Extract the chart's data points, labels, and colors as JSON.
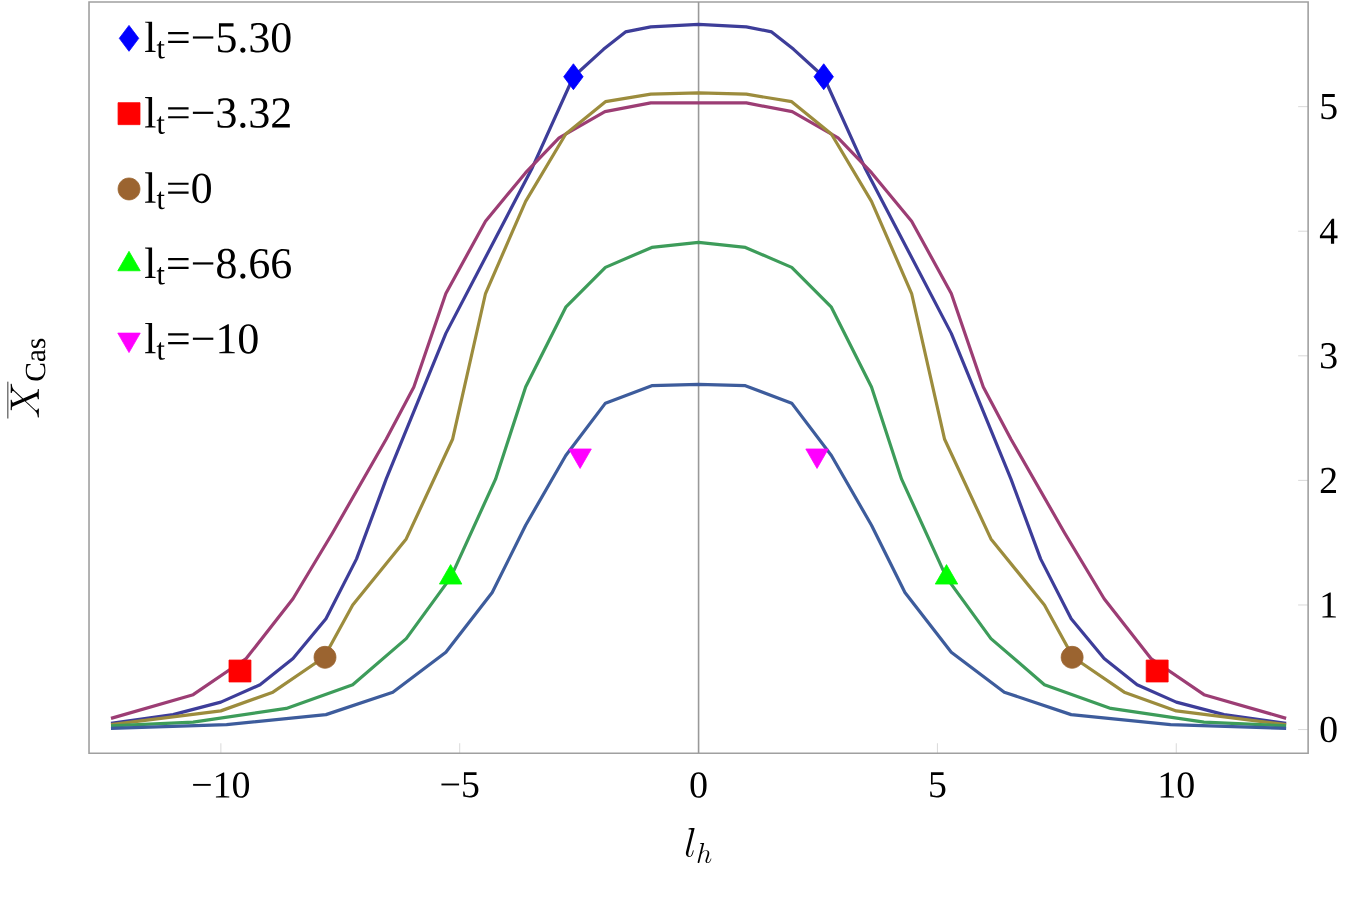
{
  "chart_data": {
    "type": "line",
    "xlabel": "l_h",
    "ylabel": "\\overline{X}_{\\mathrm{Cas}}",
    "xlim": [
      -12.76,
      12.76
    ],
    "ylim": [
      -0.19,
      5.84
    ],
    "xticks": [
      {
        "value": -10,
        "label": "−10"
      },
      {
        "value": -5,
        "label": "−5"
      },
      0,
      5,
      10
    ],
    "yticks": [
      0,
      1,
      2,
      3,
      4,
      5
    ],
    "grid": false,
    "legend": "top left",
    "line_style": "solid",
    "ref_lines": [
      {
        "axis": "x",
        "value": 0,
        "color": "#999999"
      }
    ],
    "series": [
      {
        "color": "#3d3d99",
        "x": [
          -12.3,
          -11.0,
          -10.0,
          -9.18,
          -8.49,
          -7.8,
          -7.16,
          -6.54,
          -5.29,
          -3.48,
          -2.62,
          -1.99,
          -1.53,
          -1,
          0,
          1,
          1.53,
          1.99,
          2.62,
          3.48,
          5.29,
          6.54,
          7.16,
          7.8,
          8.49,
          9.18,
          10.0,
          11.0,
          12.3
        ],
        "values": [
          0.05,
          0.12,
          0.22,
          0.36,
          0.57,
          0.89,
          1.37,
          2.01,
          3.18,
          4.51,
          5.24,
          5.46,
          5.6,
          5.64,
          5.66,
          5.64,
          5.6,
          5.46,
          5.24,
          4.51,
          3.18,
          2.01,
          1.37,
          0.89,
          0.57,
          0.36,
          0.22,
          0.12,
          0.05
        ]
      },
      {
        "color": "#9c3d74",
        "x": [
          -12.3,
          -10.58,
          -9.47,
          -8.49,
          -7.66,
          -6.54,
          -5.96,
          -5.29,
          -4.46,
          -3.62,
          -2.92,
          -1.96,
          -1,
          0,
          1,
          1.96,
          2.92,
          3.62,
          4.46,
          5.29,
          5.96,
          6.54,
          7.66,
          8.49,
          9.47,
          10.58,
          12.3
        ],
        "values": [
          0.09,
          0.28,
          0.57,
          1.05,
          1.58,
          2.33,
          2.75,
          3.5,
          4.08,
          4.47,
          4.75,
          4.96,
          5.03,
          5.03,
          5.03,
          4.96,
          4.75,
          4.47,
          4.08,
          3.5,
          2.75,
          2.33,
          1.58,
          1.05,
          0.57,
          0.28,
          0.09
        ]
      },
      {
        "color": "#9c8c3d",
        "x": [
          -12.3,
          -10.0,
          -8.91,
          -7.84,
          -7.24,
          -6.12,
          -5.15,
          -4.46,
          -3.62,
          -2.78,
          -1.95,
          -1,
          0,
          1,
          1.95,
          2.78,
          3.62,
          4.46,
          5.15,
          6.12,
          7.24,
          7.84,
          8.91,
          10.0,
          12.3
        ],
        "values": [
          0.04,
          0.15,
          0.3,
          0.58,
          1.0,
          1.53,
          2.33,
          3.5,
          4.24,
          4.78,
          5.04,
          5.1,
          5.11,
          5.1,
          5.04,
          4.78,
          4.24,
          3.5,
          2.33,
          1.53,
          1.0,
          0.58,
          0.3,
          0.15,
          0.04
        ]
      },
      {
        "color": "#3d9c5a",
        "x": [
          -12.3,
          -10.58,
          -8.63,
          -7.24,
          -6.12,
          -5.19,
          -4.25,
          -3.62,
          -2.78,
          -1.95,
          -0.98,
          0,
          0.98,
          1.95,
          2.78,
          3.62,
          4.25,
          5.19,
          6.12,
          7.24,
          8.63,
          10.58,
          12.3
        ],
        "values": [
          0.03,
          0.06,
          0.17,
          0.36,
          0.73,
          1.22,
          2.01,
          2.75,
          3.39,
          3.71,
          3.87,
          3.91,
          3.87,
          3.71,
          3.39,
          2.75,
          2.01,
          1.22,
          0.73,
          0.36,
          0.17,
          0.06,
          0.03
        ]
      },
      {
        "color": "#3d5c9c",
        "x": [
          -12.3,
          -9.88,
          -7.8,
          -6.4,
          -5.29,
          -4.32,
          -3.62,
          -2.78,
          -1.95,
          -0.98,
          0,
          0.98,
          1.95,
          2.78,
          3.62,
          4.32,
          5.29,
          6.4,
          7.8,
          9.88,
          12.3
        ],
        "values": [
          0.01,
          0.04,
          0.12,
          0.3,
          0.62,
          1.1,
          1.64,
          2.2,
          2.62,
          2.76,
          2.77,
          2.76,
          2.62,
          2.2,
          1.64,
          1.1,
          0.62,
          0.3,
          0.12,
          0.04,
          0.01
        ]
      },
      {
        "type": "scatter",
        "name": "l$_{t}$=−5.30",
        "color": "#0000ff",
        "marker": "diamond",
        "x": [
          -2.62,
          2.62
        ],
        "values": [
          5.24,
          5.24
        ]
      },
      {
        "type": "scatter",
        "name": "l$_{t}$=−3.32",
        "color": "#ff0000",
        "marker": "square",
        "x": [
          -9.6,
          9.6
        ],
        "values": [
          0.47,
          0.47
        ]
      },
      {
        "type": "scatter",
        "name": "l$_{t}$=0",
        "color": "#9b6430",
        "marker": "circle",
        "x": [
          -7.82,
          7.82
        ],
        "values": [
          0.58,
          0.58
        ]
      },
      {
        "type": "scatter",
        "name": "l$_{t}$=−8.66",
        "color": "#00ff00",
        "marker": "triangle",
        "x": [
          -5.19,
          5.19
        ],
        "values": [
          1.22,
          1.22
        ]
      },
      {
        "type": "scatter",
        "name": "l$_{t}$=−10",
        "color": "#ff00ff",
        "marker": "triangle-down",
        "x": [
          -2.48,
          2.48
        ],
        "values": [
          2.2,
          2.2
        ]
      }
    ]
  }
}
